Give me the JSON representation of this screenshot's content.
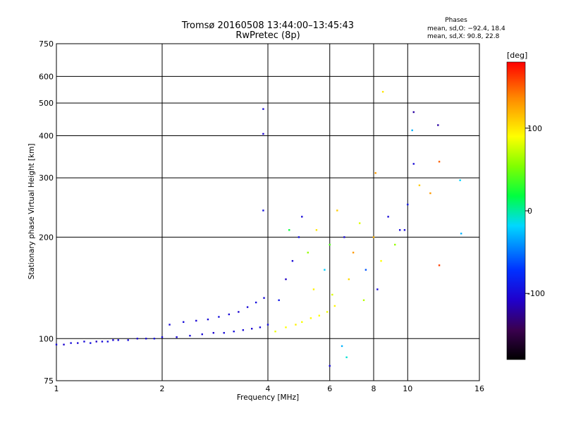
{
  "chart_data": {
    "type": "scatter",
    "title": "Tromsø 20160508 13:44:00–13:45:43",
    "subtitle": "RwPretec (8p)",
    "xlabel": "Frequency [MHz]",
    "ylabel": "Stationary phase Virtual Height [km]",
    "x_scale": "log",
    "y_scale": "log",
    "xlim": [
      1,
      16
    ],
    "ylim": [
      75,
      750
    ],
    "x_ticks": [
      1,
      2,
      4,
      6,
      8,
      10,
      16
    ],
    "y_ticks": [
      75,
      100,
      200,
      300,
      400,
      500,
      600,
      750
    ],
    "grid": true,
    "stats": {
      "heading": "Phases",
      "line1": "mean, sd,O: −92.4, 18.4",
      "line2": "mean, sd,X:  90.8, 22.8"
    },
    "colorbar": {
      "label": "[deg]",
      "ticks": [
        100,
        0,
        -100
      ],
      "range": [
        -180,
        180
      ]
    },
    "points": [
      {
        "x": 1.0,
        "y": 96,
        "p": -100
      },
      {
        "x": 1.05,
        "y": 96,
        "p": -105
      },
      {
        "x": 1.1,
        "y": 97,
        "p": -98
      },
      {
        "x": 1.15,
        "y": 97,
        "p": -102
      },
      {
        "x": 1.2,
        "y": 98,
        "p": -100
      },
      {
        "x": 1.25,
        "y": 97,
        "p": -95
      },
      {
        "x": 1.3,
        "y": 98,
        "p": -110
      },
      {
        "x": 1.35,
        "y": 98,
        "p": -100
      },
      {
        "x": 1.4,
        "y": 98,
        "p": -97
      },
      {
        "x": 1.45,
        "y": 99,
        "p": -103
      },
      {
        "x": 1.5,
        "y": 99,
        "p": -100
      },
      {
        "x": 1.6,
        "y": 99,
        "p": -98
      },
      {
        "x": 1.7,
        "y": 100,
        "p": -104
      },
      {
        "x": 1.8,
        "y": 100,
        "p": -100
      },
      {
        "x": 1.9,
        "y": 100,
        "p": -96
      },
      {
        "x": 2.0,
        "y": 101,
        "p": -100
      },
      {
        "x": 2.2,
        "y": 101,
        "p": -102
      },
      {
        "x": 2.4,
        "y": 102,
        "p": -99
      },
      {
        "x": 2.6,
        "y": 103,
        "p": -100
      },
      {
        "x": 2.8,
        "y": 104,
        "p": -105
      },
      {
        "x": 3.0,
        "y": 104,
        "p": -100
      },
      {
        "x": 3.2,
        "y": 105,
        "p": -97
      },
      {
        "x": 3.4,
        "y": 106,
        "p": -100
      },
      {
        "x": 3.6,
        "y": 107,
        "p": -103
      },
      {
        "x": 3.8,
        "y": 108,
        "p": -100
      },
      {
        "x": 4.0,
        "y": 110,
        "p": -95
      },
      {
        "x": 2.1,
        "y": 110,
        "p": -100
      },
      {
        "x": 2.3,
        "y": 112,
        "p": -98
      },
      {
        "x": 2.5,
        "y": 113,
        "p": -102
      },
      {
        "x": 2.7,
        "y": 114,
        "p": -100
      },
      {
        "x": 2.9,
        "y": 116,
        "p": -97
      },
      {
        "x": 3.1,
        "y": 118,
        "p": -100
      },
      {
        "x": 3.3,
        "y": 120,
        "p": -104
      },
      {
        "x": 3.5,
        "y": 124,
        "p": -100
      },
      {
        "x": 3.7,
        "y": 128,
        "p": -96
      },
      {
        "x": 3.9,
        "y": 132,
        "p": -100
      },
      {
        "x": 4.2,
        "y": 105,
        "p": 85
      },
      {
        "x": 4.5,
        "y": 108,
        "p": 90
      },
      {
        "x": 4.8,
        "y": 110,
        "p": 95
      },
      {
        "x": 5.0,
        "y": 112,
        "p": 88
      },
      {
        "x": 5.3,
        "y": 115,
        "p": 92
      },
      {
        "x": 5.6,
        "y": 117,
        "p": 90
      },
      {
        "x": 5.9,
        "y": 120,
        "p": 86
      },
      {
        "x": 6.2,
        "y": 125,
        "p": 94
      },
      {
        "x": 3.88,
        "y": 480,
        "p": -100
      },
      {
        "x": 3.88,
        "y": 405,
        "p": -105
      },
      {
        "x": 3.88,
        "y": 240,
        "p": -95
      },
      {
        "x": 4.3,
        "y": 130,
        "p": -90
      },
      {
        "x": 4.5,
        "y": 150,
        "p": -110
      },
      {
        "x": 4.7,
        "y": 170,
        "p": -100
      },
      {
        "x": 4.9,
        "y": 200,
        "p": -95
      },
      {
        "x": 5.0,
        "y": 230,
        "p": -100
      },
      {
        "x": 4.6,
        "y": 210,
        "p": 20
      },
      {
        "x": 5.2,
        "y": 180,
        "p": 60
      },
      {
        "x": 5.5,
        "y": 210,
        "p": 100
      },
      {
        "x": 5.8,
        "y": 160,
        "p": -20
      },
      {
        "x": 6.0,
        "y": 190,
        "p": 40
      },
      {
        "x": 6.3,
        "y": 240,
        "p": 110
      },
      {
        "x": 6.6,
        "y": 200,
        "p": -100
      },
      {
        "x": 7.0,
        "y": 180,
        "p": 130
      },
      {
        "x": 7.3,
        "y": 220,
        "p": 80
      },
      {
        "x": 7.6,
        "y": 160,
        "p": -60
      },
      {
        "x": 8.0,
        "y": 200,
        "p": 120
      },
      {
        "x": 8.4,
        "y": 170,
        "p": 90
      },
      {
        "x": 8.8,
        "y": 230,
        "p": -100
      },
      {
        "x": 9.2,
        "y": 190,
        "p": 60
      },
      {
        "x": 9.5,
        "y": 210,
        "p": -100
      },
      {
        "x": 5.4,
        "y": 140,
        "p": 95
      },
      {
        "x": 6.1,
        "y": 135,
        "p": 80
      },
      {
        "x": 6.8,
        "y": 150,
        "p": 105
      },
      {
        "x": 7.5,
        "y": 130,
        "p": 70
      },
      {
        "x": 8.2,
        "y": 140,
        "p": -100
      },
      {
        "x": 6.5,
        "y": 95,
        "p": -30
      },
      {
        "x": 6.7,
        "y": 88,
        "p": -10
      },
      {
        "x": 6.0,
        "y": 83,
        "p": -100
      },
      {
        "x": 8.5,
        "y": 540,
        "p": 100
      },
      {
        "x": 8.1,
        "y": 310,
        "p": 130
      },
      {
        "x": 10.4,
        "y": 470,
        "p": -120
      },
      {
        "x": 10.3,
        "y": 415,
        "p": -30
      },
      {
        "x": 10.4,
        "y": 330,
        "p": -100
      },
      {
        "x": 12.2,
        "y": 430,
        "p": -120
      },
      {
        "x": 12.3,
        "y": 335,
        "p": 150
      },
      {
        "x": 12.3,
        "y": 165,
        "p": 160
      },
      {
        "x": 14.1,
        "y": 295,
        "p": -20
      },
      {
        "x": 14.2,
        "y": 205,
        "p": -30
      },
      {
        "x": 10.8,
        "y": 285,
        "p": 110
      },
      {
        "x": 11.6,
        "y": 270,
        "p": 130
      },
      {
        "x": 9.8,
        "y": 210,
        "p": -100
      },
      {
        "x": 10.0,
        "y": 250,
        "p": -90
      }
    ]
  }
}
